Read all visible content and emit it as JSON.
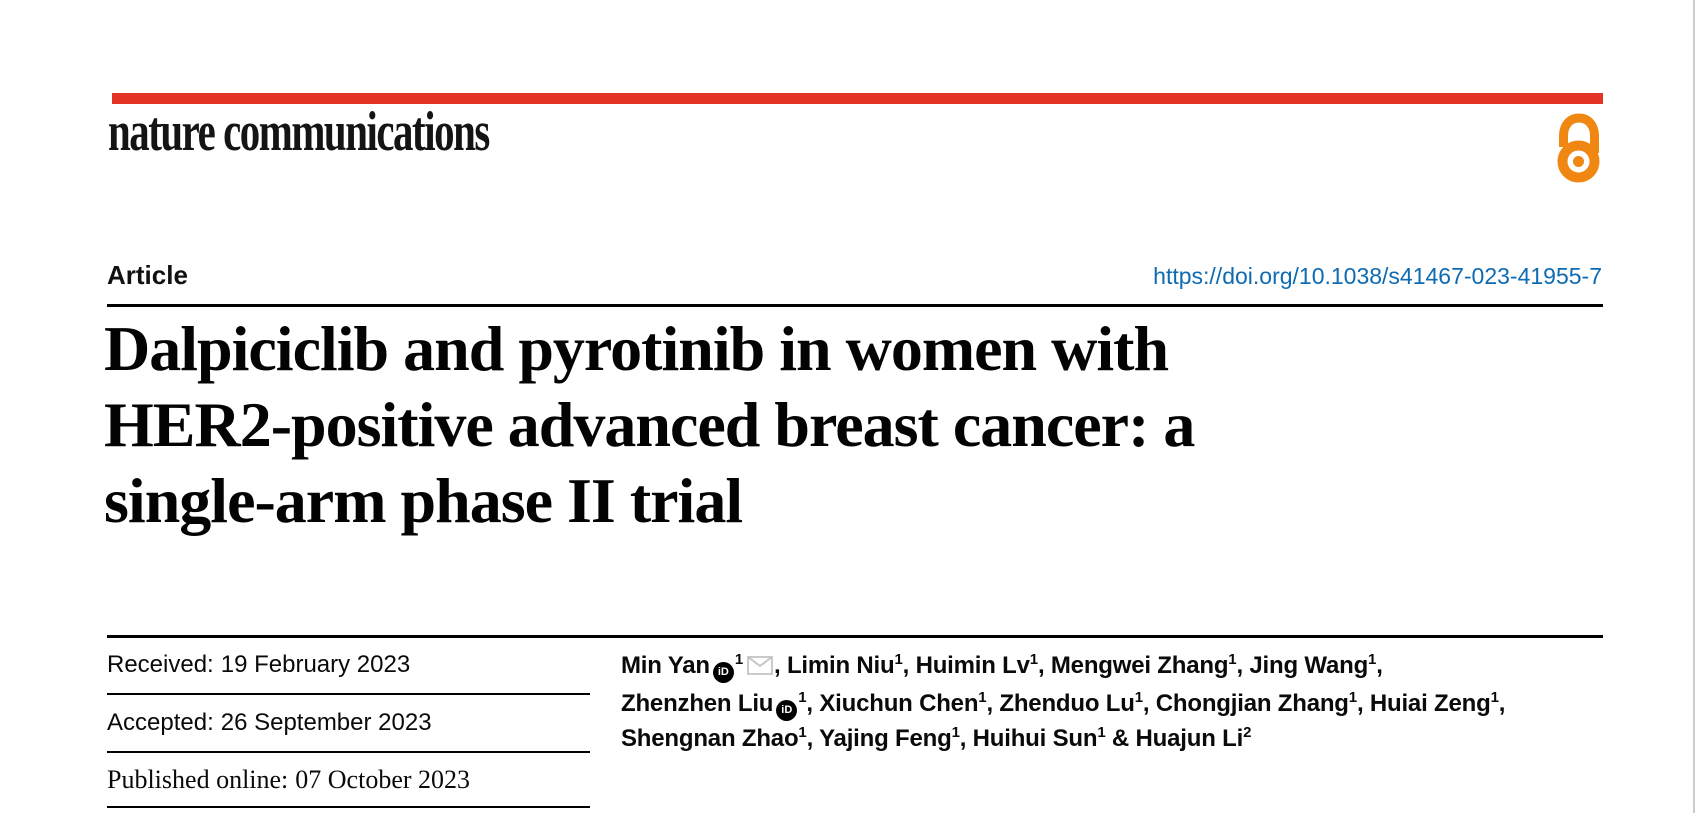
{
  "page": {
    "journal_logo": "nature communications",
    "article_label": "Article",
    "doi": "https://doi.org/10.1038/s41467-023-41955-7"
  },
  "title": {
    "lines": [
      "Dalpiciclib and pyrotinib in women with",
      "HER2-positive advanced breast cancer: a",
      "single-arm phase II trial"
    ]
  },
  "dates": {
    "received": {
      "label": "Received:",
      "value": "19 February 2023"
    },
    "accepted": {
      "label": "Accepted:",
      "value": "26 September 2023"
    },
    "published": {
      "label": "Published online:",
      "value": "07 October 2023"
    }
  },
  "authors": {
    "lines": [
      [
        {
          "name": "Min Yan",
          "orcid": true,
          "sup": "1",
          "email": true,
          "sep": ", "
        },
        {
          "name": "Limin Niu",
          "sup": "1",
          "sep": ", "
        },
        {
          "name": "Huimin Lv",
          "sup": "1",
          "sep": ", "
        },
        {
          "name": "Mengwei Zhang",
          "sup": "1",
          "sep": ", "
        },
        {
          "name": "Jing Wang",
          "sup": "1",
          "sep": ","
        }
      ],
      [
        {
          "name": "Zhenzhen Liu",
          "orcid": true,
          "sup": "1",
          "sep": ", "
        },
        {
          "name": "Xiuchun Chen",
          "sup": "1",
          "sep": ", "
        },
        {
          "name": "Zhenduo Lu",
          "sup": "1",
          "sep": ", "
        },
        {
          "name": "Chongjian Zhang",
          "sup": "1",
          "sep": ", "
        },
        {
          "name": "Huiai Zeng",
          "sup": "1",
          "sep": ","
        }
      ],
      [
        {
          "name": "Shengnan Zhao",
          "sup": "1",
          "sep": ", "
        },
        {
          "name": "Yajing Feng",
          "sup": "1",
          "sep": ", "
        },
        {
          "name": "Huihui Sun",
          "sup": "1",
          "sep": " & "
        },
        {
          "name": "Huajun Li",
          "sup": "2",
          "sep": ""
        }
      ]
    ]
  },
  "icons": {
    "open_access": "open-access-padlock-icon",
    "orcid": "orcid-id-icon",
    "orcid_text": "iD",
    "email": "email-envelope-icon"
  },
  "colors": {
    "brand_red": "#e43225",
    "open_access_orange": "#ef8712",
    "link_blue": "#0e6bb2",
    "text_black": "#0a0a0a",
    "envelope_gray": "#c4c4c4",
    "page_edge_gray": "#cccccc"
  }
}
